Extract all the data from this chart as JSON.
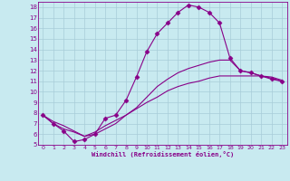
{
  "xlabel": "Windchill (Refroidissement éolien,°C)",
  "bg_color": "#c8eaf0",
  "grid_color": "#a8ccd8",
  "line_color": "#880088",
  "xlim": [
    -0.5,
    23.5
  ],
  "ylim": [
    5,
    18.5
  ],
  "xticks": [
    0,
    1,
    2,
    3,
    4,
    5,
    6,
    7,
    8,
    9,
    10,
    11,
    12,
    13,
    14,
    15,
    16,
    17,
    18,
    19,
    20,
    21,
    22,
    23
  ],
  "yticks": [
    5,
    6,
    7,
    8,
    9,
    10,
    11,
    12,
    13,
    14,
    15,
    16,
    17,
    18
  ],
  "series": [
    {
      "x": [
        0,
        1,
        2,
        3,
        4,
        5,
        6,
        7,
        8,
        9,
        10,
        11,
        12,
        13,
        14,
        15,
        16,
        17,
        18,
        19,
        20,
        21,
        22,
        23
      ],
      "y": [
        7.8,
        7.0,
        6.3,
        5.3,
        5.5,
        6.0,
        7.5,
        7.8,
        9.2,
        11.4,
        13.8,
        15.5,
        16.5,
        17.5,
        18.2,
        18.0,
        17.5,
        16.5,
        13.2,
        12.0,
        11.8,
        11.5,
        11.2,
        11.0
      ],
      "marker": "D",
      "markersize": 2.5
    },
    {
      "x": [
        0,
        1,
        2,
        3,
        4,
        5,
        6,
        7,
        8,
        9,
        10,
        11,
        12,
        13,
        14,
        15,
        16,
        17,
        18,
        19,
        20,
        21,
        22,
        23
      ],
      "y": [
        7.8,
        7.2,
        6.8,
        6.3,
        5.8,
        6.2,
        6.8,
        7.3,
        7.8,
        8.4,
        9.0,
        9.5,
        10.1,
        10.5,
        10.8,
        11.0,
        11.3,
        11.5,
        11.5,
        11.5,
        11.5,
        11.5,
        11.4,
        11.1
      ],
      "marker": null,
      "markersize": 0
    },
    {
      "x": [
        0,
        1,
        2,
        3,
        4,
        5,
        6,
        7,
        8,
        9,
        10,
        11,
        12,
        13,
        14,
        15,
        16,
        17,
        18,
        19,
        20,
        21,
        22,
        23
      ],
      "y": [
        7.8,
        7.0,
        6.5,
        6.2,
        5.8,
        6.0,
        6.5,
        7.0,
        7.8,
        8.5,
        9.5,
        10.5,
        11.2,
        11.8,
        12.2,
        12.5,
        12.8,
        13.0,
        13.0,
        12.0,
        11.8,
        11.5,
        11.3,
        11.0
      ],
      "marker": null,
      "markersize": 0
    }
  ]
}
